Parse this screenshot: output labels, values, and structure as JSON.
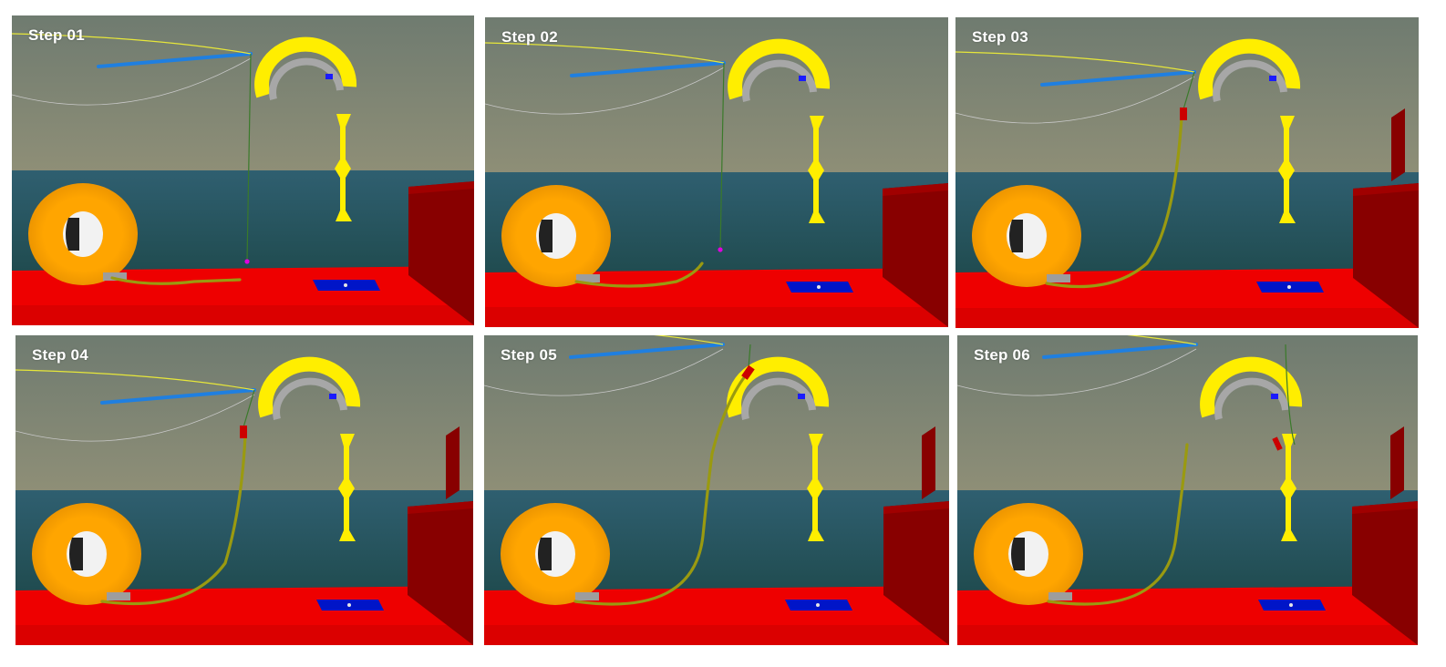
{
  "panels": [
    {
      "label": "Step 01",
      "stage": 1
    },
    {
      "label": "Step 02",
      "stage": 2
    },
    {
      "label": "Step 03",
      "stage": 3
    },
    {
      "label": "Step 04",
      "stage": 4
    },
    {
      "label": "Step 05",
      "stage": 5
    },
    {
      "label": "Step 06",
      "stage": 6
    }
  ],
  "colors": {
    "deck": "#ee0000",
    "deck_dark": "#b80000",
    "wall": "#880000",
    "sea": "#1f4a4d",
    "sky_top": "#6f7b70",
    "sky_horizon": "#8f8f77",
    "reel": "#ffa500",
    "chute": "#ffee00",
    "boom": "#1f7fe0",
    "hose": "#9a9a10",
    "pad": "#0015c8"
  },
  "icons": [
    "hose-reel-icon",
    "chute-icon",
    "stiffener-icon",
    "crane-boom-icon",
    "deck-pad-icon"
  ]
}
